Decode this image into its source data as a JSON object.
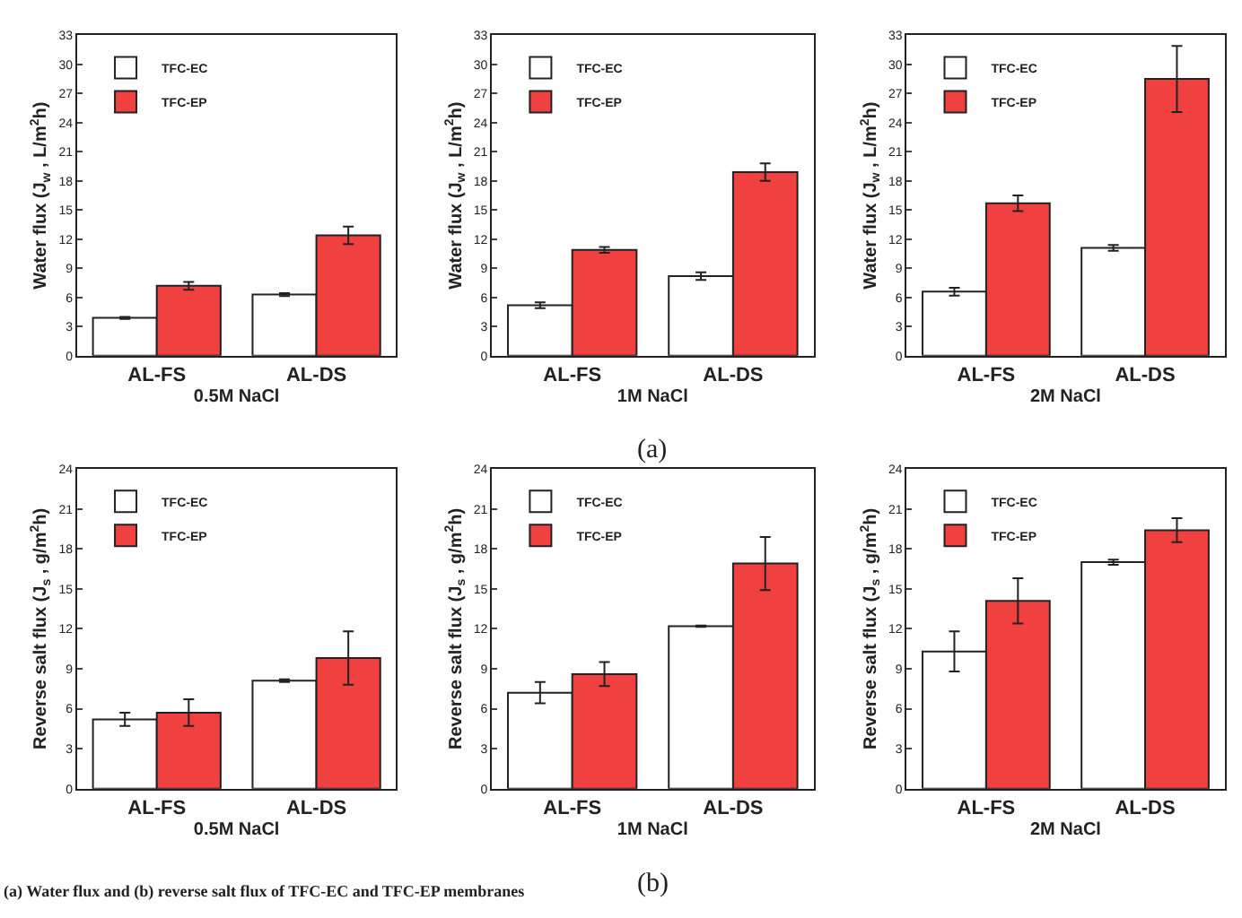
{
  "chart_data": [
    {
      "type": "bar",
      "categories": [
        "AL-FS",
        "AL-DS"
      ],
      "xlabel": "0.5M NaCl",
      "ylabel": "Water flux (J$_{w}$ , L/m$^{2}$h)",
      "ylim": [
        0,
        33
      ],
      "yticks": [
        0,
        3,
        6,
        9,
        12,
        15,
        18,
        21,
        24,
        27,
        30,
        33
      ],
      "grid": false,
      "legend": "top left",
      "series": [
        {
          "name": "TFC-EC",
          "color": "#ffffff",
          "values": [
            3.9,
            6.3
          ],
          "errors": [
            0.1,
            0.15
          ]
        },
        {
          "name": "TFC-EP",
          "color": "#f04040",
          "values": [
            7.2,
            12.4
          ],
          "errors": [
            0.4,
            0.9
          ]
        }
      ]
    },
    {
      "type": "bar",
      "categories": [
        "AL-FS",
        "AL-DS"
      ],
      "xlabel": "1M NaCl",
      "ylabel": "Water flux (J$_{w}$ , L/m$^{2}$h)",
      "ylim": [
        0,
        33
      ],
      "yticks": [
        0,
        3,
        6,
        9,
        12,
        15,
        18,
        21,
        24,
        27,
        30,
        33
      ],
      "grid": false,
      "legend": "top left",
      "annotations": [
        "(a)"
      ],
      "series": [
        {
          "name": "TFC-EC",
          "color": "#ffffff",
          "values": [
            5.2,
            8.2
          ],
          "errors": [
            0.3,
            0.4
          ]
        },
        {
          "name": "TFC-EP",
          "color": "#f04040",
          "values": [
            10.9,
            18.9
          ],
          "errors": [
            0.3,
            0.9
          ]
        }
      ]
    },
    {
      "type": "bar",
      "categories": [
        "AL-FS",
        "AL-DS"
      ],
      "xlabel": "2M NaCl",
      "ylabel": "Water flux (J$_{w}$ , L/m$^{2}$h)",
      "ylim": [
        0,
        33
      ],
      "yticks": [
        0,
        3,
        6,
        9,
        12,
        15,
        18,
        21,
        24,
        27,
        30,
        33
      ],
      "grid": false,
      "legend": "top left",
      "series": [
        {
          "name": "TFC-EC",
          "color": "#ffffff",
          "values": [
            6.6,
            11.1
          ],
          "errors": [
            0.4,
            0.3
          ]
        },
        {
          "name": "TFC-EP",
          "color": "#f04040",
          "values": [
            15.7,
            28.5
          ],
          "errors": [
            0.8,
            3.4
          ]
        }
      ]
    },
    {
      "type": "bar",
      "categories": [
        "AL-FS",
        "AL-DS"
      ],
      "xlabel": "0.5M NaCl",
      "ylabel": "Reverse salt flux (J$_{s}$ , g/m$^{2}$h)",
      "ylim": [
        0,
        24
      ],
      "yticks": [
        0,
        3,
        6,
        9,
        12,
        15,
        18,
        21,
        24
      ],
      "grid": false,
      "legend": "top left",
      "annotations": [
        "(a) Water flux and (b) reverse salt flux of TFC-EC and TFC-EP membranes"
      ],
      "series": [
        {
          "name": "TFC-EC",
          "color": "#ffffff",
          "values": [
            5.2,
            8.1
          ],
          "errors": [
            0.5,
            0.1
          ]
        },
        {
          "name": "TFC-EP",
          "color": "#f04040",
          "values": [
            5.7,
            9.8
          ],
          "errors": [
            1.0,
            2.0
          ]
        }
      ]
    },
    {
      "type": "bar",
      "categories": [
        "AL-FS",
        "AL-DS"
      ],
      "xlabel": "1M NaCl",
      "ylabel": "Reverse salt flux (J$_{s}$ , g/m$^{2}$h)",
      "ylim": [
        0,
        24
      ],
      "yticks": [
        0,
        3,
        6,
        9,
        12,
        15,
        18,
        21,
        24
      ],
      "grid": false,
      "legend": "top left",
      "annotations": [
        "(b)"
      ],
      "series": [
        {
          "name": "TFC-EC",
          "color": "#ffffff",
          "values": [
            7.2,
            12.2
          ],
          "errors": [
            0.8,
            0.05
          ]
        },
        {
          "name": "TFC-EP",
          "color": "#f04040",
          "values": [
            8.6,
            16.9
          ],
          "errors": [
            0.9,
            2.0
          ]
        }
      ]
    },
    {
      "type": "bar",
      "categories": [
        "AL-FS",
        "AL-DS"
      ],
      "xlabel": "2M NaCl",
      "ylabel": "Reverse salt flux (J$_{s}$ , g/m$^{2}$h)",
      "ylim": [
        0,
        24
      ],
      "yticks": [
        0,
        3,
        6,
        9,
        12,
        15,
        18,
        21,
        24
      ],
      "grid": false,
      "legend": "top left",
      "series": [
        {
          "name": "TFC-EC",
          "color": "#ffffff",
          "values": [
            10.3,
            17.0
          ],
          "errors": [
            1.5,
            0.2
          ]
        },
        {
          "name": "TFC-EP",
          "color": "#f04040",
          "values": [
            14.1,
            19.4
          ],
          "errors": [
            1.7,
            0.9
          ]
        }
      ]
    }
  ]
}
